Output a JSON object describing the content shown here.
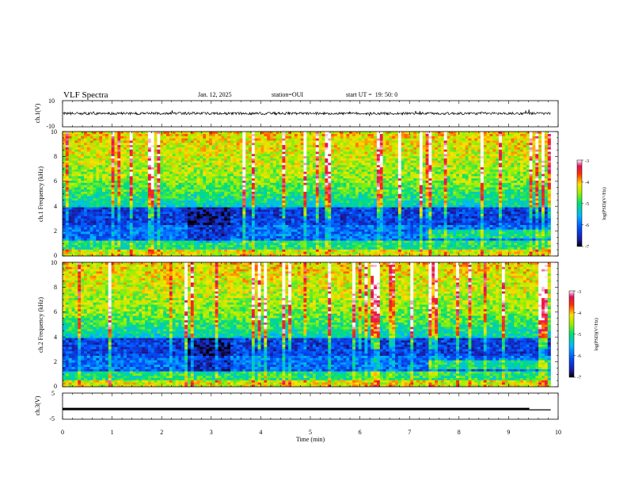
{
  "header": {
    "title": "VLF Spectra",
    "date": "Jan. 12, 2025",
    "station": "station=OUI",
    "start": "start UT =  19: 50: 0"
  },
  "chart_data": [
    {
      "type": "line",
      "panel": "ch1_waveform",
      "ylabel": "ch.1(V)",
      "ylim": [
        -10,
        10
      ],
      "yticks": [
        {
          "value": 10,
          "label": "10"
        },
        {
          "value": -10,
          "label": "-10"
        }
      ],
      "xlim": [
        0,
        10
      ],
      "baseline": 0.2,
      "noise_amplitude": 0.6,
      "data_end_min": 9.85
    },
    {
      "type": "heatmap",
      "panel": "ch1_spectrogram",
      "ylabel": "ch.1 Frequency (kHz)",
      "ylim": [
        0,
        10
      ],
      "yticks": [
        {
          "value": 0,
          "label": "0"
        },
        {
          "value": 2,
          "label": "2"
        },
        {
          "value": 4,
          "label": "4"
        },
        {
          "value": 6,
          "label": "6"
        },
        {
          "value": 8,
          "label": "8"
        },
        {
          "value": 10,
          "label": "10"
        }
      ],
      "xlim": [
        0,
        10
      ],
      "data_end_min": 9.85,
      "colorbar": {
        "label": "log(PSD)(V²/Hz)",
        "range": [
          -7,
          -3
        ],
        "ticks": [
          {
            "value": -3,
            "label": "-3"
          },
          {
            "value": -4,
            "label": "-4"
          },
          {
            "value": -5,
            "label": "-5"
          },
          {
            "value": -6,
            "label": "-6"
          },
          {
            "value": -7,
            "label": "-7"
          }
        ]
      }
    },
    {
      "type": "heatmap",
      "panel": "ch2_spectrogram",
      "ylabel": "ch.2 Frequency (kHz)",
      "ylim": [
        0,
        10
      ],
      "yticks": [
        {
          "value": 0,
          "label": "0"
        },
        {
          "value": 2,
          "label": "2"
        },
        {
          "value": 4,
          "label": "4"
        },
        {
          "value": 6,
          "label": "6"
        },
        {
          "value": 8,
          "label": "8"
        },
        {
          "value": 10,
          "label": "10"
        }
      ],
      "xlim": [
        0,
        10
      ],
      "data_end_min": 9.85,
      "colorbar": {
        "label": "log(PSD)(V²/Hz)",
        "range": [
          -7,
          -3
        ],
        "ticks": [
          {
            "value": -3,
            "label": "-3"
          },
          {
            "value": -4,
            "label": "-4"
          },
          {
            "value": -5,
            "label": "-5"
          },
          {
            "value": -6,
            "label": "-6"
          },
          {
            "value": -7,
            "label": "-7"
          }
        ]
      }
    },
    {
      "type": "line",
      "panel": "ch3_waveform",
      "ylabel": "ch.3(V)",
      "ylim": [
        -5,
        5
      ],
      "yticks": [
        {
          "value": 5,
          "label": "5"
        },
        {
          "value": -5,
          "label": "-5"
        }
      ],
      "xlim": [
        0,
        10
      ],
      "xlabel": "Time (min)",
      "xticks": [
        {
          "value": 0,
          "label": "0"
        },
        {
          "value": 1,
          "label": "1"
        },
        {
          "value": 2,
          "label": "2"
        },
        {
          "value": 3,
          "label": "3"
        },
        {
          "value": 4,
          "label": "4"
        },
        {
          "value": 5,
          "label": "5"
        },
        {
          "value": 6,
          "label": "6"
        },
        {
          "value": 7,
          "label": "7"
        },
        {
          "value": 8,
          "label": "8"
        },
        {
          "value": 9,
          "label": "9"
        },
        {
          "value": 10,
          "label": "10"
        }
      ],
      "segments": [
        {
          "x": [
            0,
            9.42
          ],
          "y": -1.1
        },
        {
          "x": [
            9.42,
            9.85
          ],
          "y": -1.4
        }
      ]
    }
  ]
}
